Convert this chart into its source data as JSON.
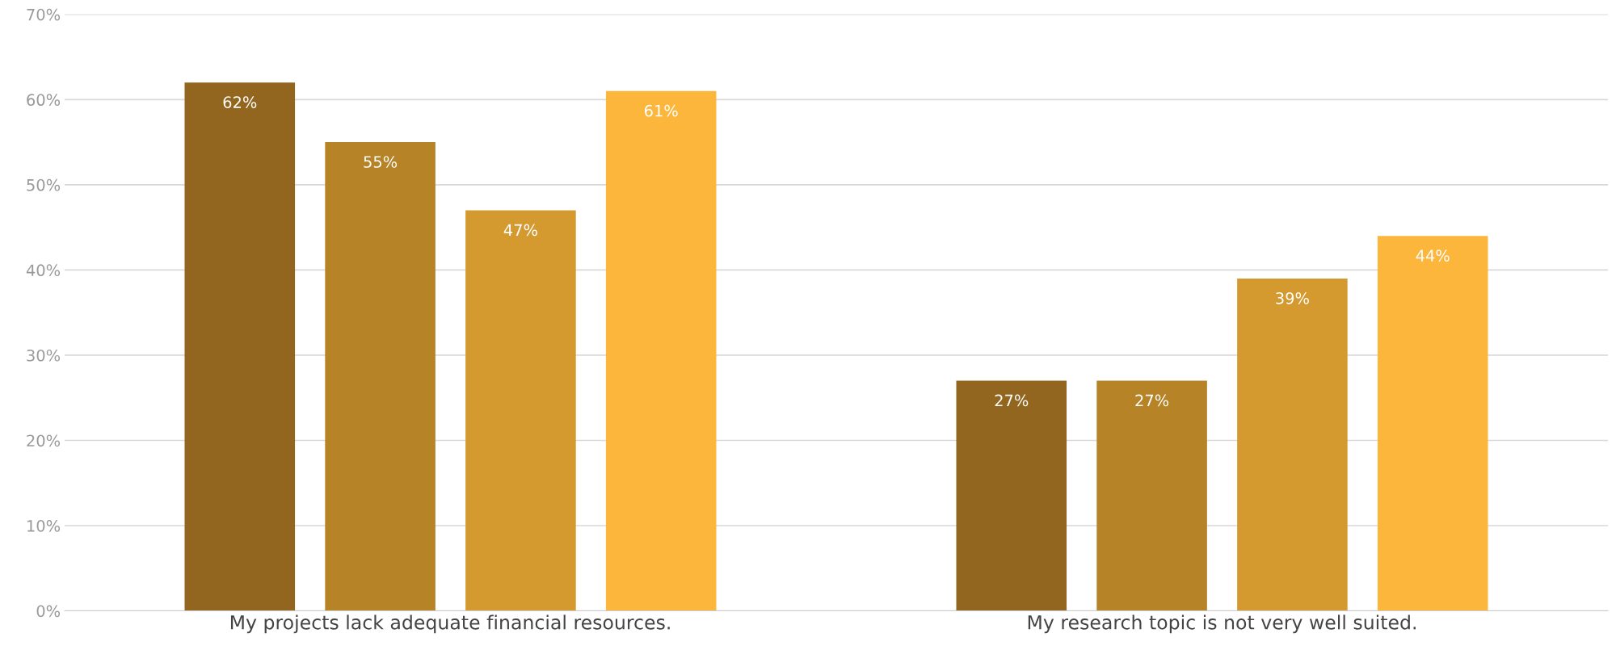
{
  "chart_data": {
    "type": "bar",
    "categories": [
      "My projects lack adequate financial resources.",
      "My research topic is not very well suited."
    ],
    "series": [
      {
        "color": "#93661f",
        "values": [
          62,
          27
        ],
        "value_labels": [
          "62%",
          "27%"
        ]
      },
      {
        "color": "#b78327",
        "values": [
          55,
          27
        ],
        "value_labels": [
          "55%",
          "27%"
        ]
      },
      {
        "color": "#d49a30",
        "values": [
          47,
          39
        ],
        "value_labels": [
          "47%",
          "39%"
        ]
      },
      {
        "color": "#fdb63c",
        "values": [
          61,
          44
        ],
        "value_labels": [
          "61%",
          "44%"
        ]
      }
    ],
    "ylim": [
      0,
      70
    ],
    "yticks": [
      {
        "value": 0,
        "label": "0%"
      },
      {
        "value": 10,
        "label": "10%"
      },
      {
        "value": 20,
        "label": "20%"
      },
      {
        "value": 30,
        "label": "30%"
      },
      {
        "value": 40,
        "label": "40%"
      },
      {
        "value": 50,
        "label": "50%"
      },
      {
        "value": 60,
        "label": "60%"
      },
      {
        "value": 70,
        "label": "70%"
      }
    ],
    "grid": "y"
  }
}
